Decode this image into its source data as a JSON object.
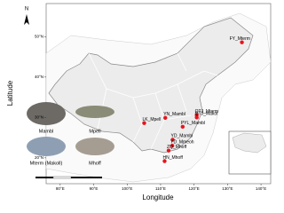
{
  "map": {
    "xlabel": "Longitude",
    "ylabel": "Latitude",
    "north": "N",
    "xlim": [
      75.8,
      142.9
    ],
    "ylim": [
      13.6,
      58.2
    ],
    "xticks": [
      {
        "value": 80,
        "label": "80°E"
      },
      {
        "value": 90,
        "label": "90°E"
      },
      {
        "value": 100,
        "label": "100°E"
      },
      {
        "value": 110,
        "label": "110°E"
      },
      {
        "value": 120,
        "label": "120°E"
      },
      {
        "value": 130,
        "label": "130°E"
      },
      {
        "value": 140,
        "label": "140°E"
      }
    ],
    "yticks": [
      {
        "value": 20,
        "label": "20°N"
      },
      {
        "value": 30,
        "label": "30°N"
      },
      {
        "value": 40,
        "label": "40°N"
      },
      {
        "value": 50,
        "label": "50°N"
      }
    ],
    "color": "#e8141c",
    "sites": [
      {
        "label": "FY_Mterm",
        "lon": 134.3,
        "lat": 48.6
      },
      {
        "label": "YN_Mambl",
        "lon": 111.4,
        "lat": 29.9
      },
      {
        "label": "QTJ_Mterm",
        "lon": 120.8,
        "lat": 30.6
      },
      {
        "label": "QTJ_Makol",
        "lon": 120.8,
        "lat": 30.0
      },
      {
        "label": "PYL_Mambl",
        "lon": 116.6,
        "lat": 27.7
      },
      {
        "label": "LK_Mpell",
        "lon": 105.1,
        "lat": 28.6
      },
      {
        "label": "YD_Mambl",
        "lon": 113.6,
        "lat": 24.5
      },
      {
        "label": "YD_Mmeoh",
        "lon": 113.5,
        "lat": 23.0
      },
      {
        "label": "ZQ_Mhoff",
        "lon": 112.4,
        "lat": 21.8
      },
      {
        "label": "HN_Mhoff",
        "lon": 111.2,
        "lat": 19.2
      }
    ],
    "fish": [
      "Mambl",
      "Mpell",
      "Mterm (Makoll)",
      "Mhoff"
    ]
  }
}
